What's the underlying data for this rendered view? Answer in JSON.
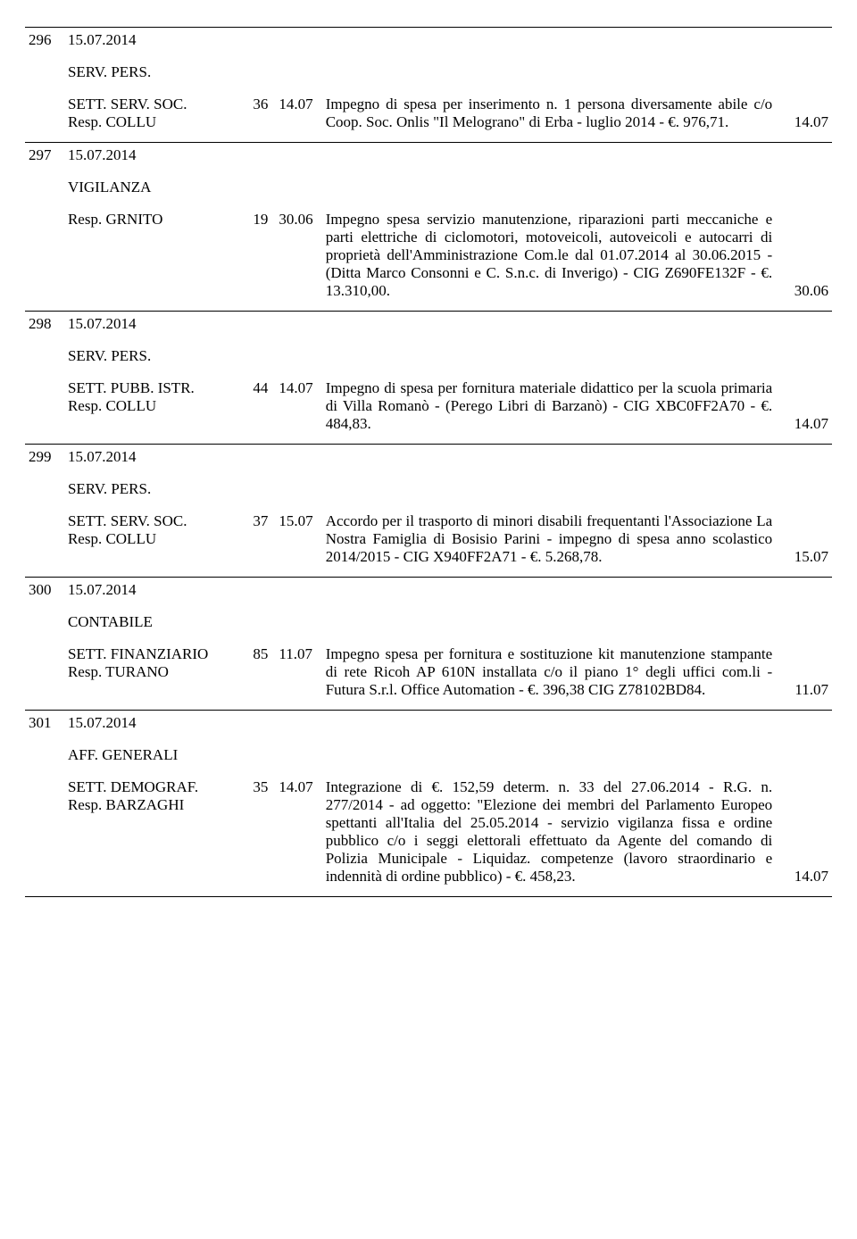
{
  "rows": [
    {
      "num": "296",
      "date": "15.07.2014",
      "dept1": "SERV. PERS.",
      "dept2": "SETT. SERV. SOC.",
      "resp": "Resp. COLLU",
      "c1": "36",
      "c2": "14.07",
      "body": "Impegno di spesa per inserimento n. 1 persona diversamente abile c/o Coop. Soc. Onlis \"Il Melograno\" di Erba - luglio 2014 - €. 976,71.",
      "right": "14.07"
    },
    {
      "num": "297",
      "date": "15.07.2014",
      "dept1": "VIGILANZA",
      "dept2": "",
      "resp": "Resp. GRNITO",
      "c1": "19",
      "c2": "30.06",
      "body": "Impegno spesa servizio manutenzione, riparazioni parti meccaniche e parti elettriche di ciclomotori, motoveicoli, autoveicoli e autocarri di proprietà dell'Amministrazione Com.le dal 01.07.2014 al 30.06.2015 - (Ditta Marco Consonni e C. S.n.c. di Inverigo) - CIG Z690FE132F - €. 13.310,00.",
      "right": "30.06"
    },
    {
      "num": "298",
      "date": "15.07.2014",
      "dept1": "SERV. PERS.",
      "dept2": "SETT. PUBB. ISTR.",
      "resp": "Resp. COLLU",
      "c1": "44",
      "c2": "14.07",
      "body": "Impegno di spesa per fornitura materiale didattico per la scuola primaria di Villa Romanò - (Perego Libri di Barzanò) - CIG XBC0FF2A70 - €. 484,83.",
      "right": "14.07"
    },
    {
      "num": "299",
      "date": "15.07.2014",
      "dept1": "SERV. PERS.",
      "dept2": "SETT. SERV. SOC.",
      "resp": "Resp. COLLU",
      "c1": "37",
      "c2": "15.07",
      "body": "Accordo per il trasporto di minori disabili frequentanti l'Associazione La Nostra Famiglia di Bosisio Parini - impegno di spesa anno scolastico 2014/2015 - CIG X940FF2A71 - €. 5.268,78.",
      "right": "15.07"
    },
    {
      "num": "300",
      "date": "15.07.2014",
      "dept1": "CONTABILE",
      "dept2": "SETT. FINANZIARIO",
      "resp": "Resp. TURANO",
      "c1": "85",
      "c2": "11.07",
      "body": "Impegno spesa per fornitura e sostituzione kit manutenzione stampante di rete Ricoh AP 610N installata c/o il piano 1° degli uffici com.li - Futura S.r.l. Office Automation - €. 396,38 CIG Z78102BD84.",
      "right": "11.07"
    },
    {
      "num": "301",
      "date": "15.07.2014",
      "dept1": "AFF. GENERALI",
      "dept2": "SETT. DEMOGRAF.",
      "resp": "Resp. BARZAGHI",
      "c1": "35",
      "c2": "14.07",
      "body": "Integrazione di €. 152,59 determ. n. 33 del 27.06.2014 - R.G. n. 277/2014 - ad oggetto: \"Elezione dei membri del Parlamento Europeo spettanti all'Italia del 25.05.2014 - servizio vigilanza fissa e ordine pubblico c/o i seggi elettorali effettuato da Agente del comando di Polizia Municipale - Liquidaz. competenze (lavoro straordinario e indennità di ordine pubblico) - €. 458,23.",
      "right": "14.07"
    }
  ]
}
